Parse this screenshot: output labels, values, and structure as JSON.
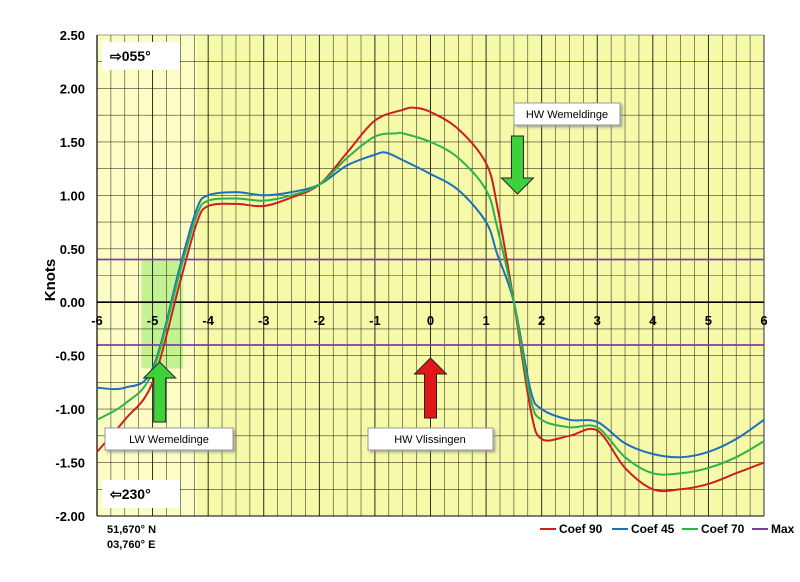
{
  "chart_data": {
    "type": "line",
    "title": "",
    "xlabel": "",
    "ylabel": "Knots",
    "xlim": [
      -6,
      6
    ],
    "ylim": [
      -2.0,
      2.5
    ],
    "x_ticks": [
      "-6",
      "-5",
      "-4",
      "-3",
      "-2",
      "-1",
      "0",
      "1",
      "2",
      "3",
      "4",
      "5",
      "6"
    ],
    "y_ticks": [
      "2.50",
      "2.00",
      "1.50",
      "1.00",
      "0.50",
      "0.00",
      "-0.50",
      "-1.00",
      "-1.50",
      "-2.00"
    ],
    "grid": true,
    "legend_position": "bottom-right",
    "series": [
      {
        "name": "Coef 90",
        "color": "#cc1f1f",
        "x": [
          -6,
          -5.5,
          -5,
          -4.5,
          -4.2,
          -4,
          -3.5,
          -3,
          -2.5,
          -2,
          -1.5,
          -1,
          -0.5,
          -0.3,
          0,
          0.5,
          1,
          1.2,
          1.5,
          1.8,
          2,
          2.5,
          3,
          3.5,
          4,
          4.5,
          5,
          5.5,
          6
        ],
        "y": [
          -1.4,
          -1.1,
          -0.75,
          0.2,
          0.75,
          0.9,
          0.92,
          0.9,
          0.98,
          1.1,
          1.4,
          1.7,
          1.8,
          1.82,
          1.78,
          1.62,
          1.3,
          0.9,
          0.0,
          -1.0,
          -1.28,
          -1.25,
          -1.2,
          -1.55,
          -1.75,
          -1.75,
          -1.7,
          -1.6,
          -1.5
        ]
      },
      {
        "name": "Coef 45",
        "color": "#1f6fbf",
        "x": [
          -6,
          -5.5,
          -5,
          -4.5,
          -4.2,
          -4,
          -3.5,
          -3,
          -2.5,
          -2,
          -1.5,
          -1,
          -0.8,
          -0.5,
          0,
          0.5,
          1,
          1.2,
          1.5,
          1.8,
          2,
          2.5,
          3,
          3.5,
          4,
          4.5,
          5,
          5.5,
          6
        ],
        "y": [
          -0.8,
          -0.8,
          -0.62,
          0.35,
          0.88,
          1.0,
          1.03,
          1.0,
          1.03,
          1.1,
          1.28,
          1.38,
          1.4,
          1.33,
          1.2,
          1.05,
          0.75,
          0.45,
          0.0,
          -0.82,
          -1.0,
          -1.1,
          -1.12,
          -1.32,
          -1.42,
          -1.45,
          -1.4,
          -1.28,
          -1.1
        ]
      },
      {
        "name": "Coef 70",
        "color": "#2eb34a",
        "x": [
          -6,
          -5.5,
          -5,
          -4.5,
          -4.2,
          -4,
          -3.5,
          -3,
          -2.5,
          -2,
          -1.5,
          -1,
          -0.6,
          -0.5,
          0,
          0.5,
          1,
          1.2,
          1.5,
          1.8,
          2,
          2.5,
          3,
          3.5,
          4,
          4.5,
          5,
          5.5,
          6
        ],
        "y": [
          -1.1,
          -0.95,
          -0.65,
          0.3,
          0.82,
          0.95,
          0.97,
          0.95,
          1.0,
          1.1,
          1.35,
          1.55,
          1.58,
          1.58,
          1.5,
          1.35,
          1.05,
          0.7,
          0.0,
          -0.9,
          -1.1,
          -1.17,
          -1.17,
          -1.45,
          -1.6,
          -1.6,
          -1.55,
          -1.45,
          -1.3
        ]
      },
      {
        "name": "Max",
        "color": "#7a3fa8",
        "lines_y": [
          0.4,
          -0.4
        ]
      }
    ],
    "annotations": {
      "dir_up": "⇨055°",
      "dir_down": "⇦230°",
      "hw_wemeldinge": "HW Wemeldinge",
      "lw_wemeldinge": "LW Wemeldinge",
      "hw_vlissingen": "HW Vlissingen",
      "coord_lat": "51,670° N",
      "coord_lon": "03,760° E",
      "arrow_green_down_x": 1.6,
      "arrow_green_up_x": -4.8,
      "arrow_red_up_x": 0
    },
    "shading": {
      "bg_color": "#fbfdc5",
      "bg_x": [
        -6,
        -4.2
      ],
      "highlight_color": "#b8f08a",
      "highlight_x": [
        -5.2,
        -4.45
      ],
      "highlight_y": [
        -0.62,
        0.4
      ]
    }
  }
}
